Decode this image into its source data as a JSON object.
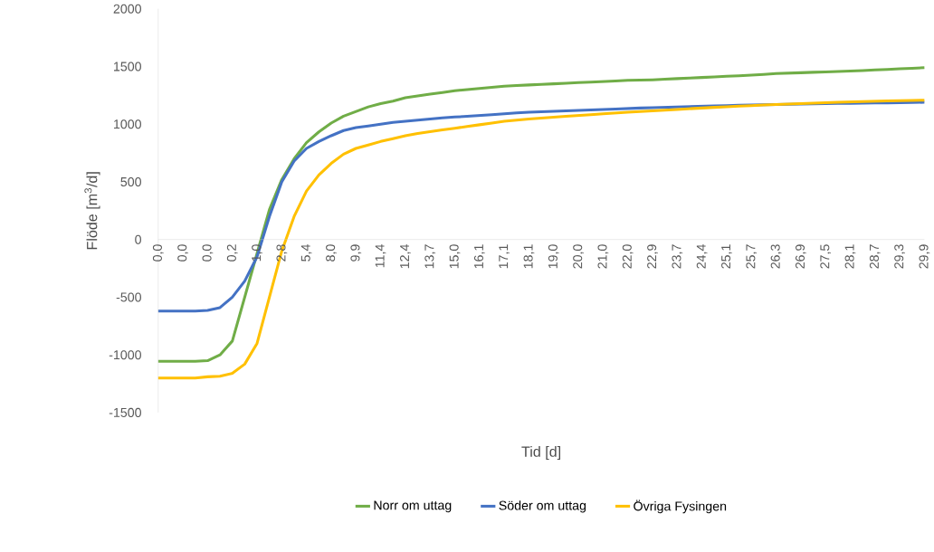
{
  "chart_data": {
    "type": "line",
    "xlabel": "Tid [d]",
    "ylabel": "Flöde [m$^{3}$/d]",
    "categories": [
      "0,0",
      null,
      "0,0",
      null,
      "0,0",
      null,
      "0,2",
      null,
      "1,0",
      null,
      "2,8",
      null,
      "5,4",
      null,
      "8,0",
      null,
      "9,9",
      null,
      "11,4",
      null,
      "12,4",
      null,
      "13,7",
      null,
      "15,0",
      null,
      "16,1",
      null,
      "17,1",
      null,
      "18,1",
      null,
      "19,0",
      null,
      "20,0",
      null,
      "21,0",
      null,
      "22,0",
      null,
      "22,9",
      null,
      "23,7",
      null,
      "24,4",
      null,
      "25,1",
      null,
      "25,7",
      null,
      "26,3",
      null,
      "26,9",
      null,
      "27,5",
      null,
      "28,1",
      null,
      "28,7",
      null,
      "29,3",
      null,
      "29,9"
    ],
    "series": [
      {
        "name": "Norr om uttag",
        "color": "#70ad47",
        "values": [
          -1055,
          -1055,
          -1055,
          -1055,
          -1050,
          -1000,
          -880,
          -500,
          -120,
          260,
          520,
          700,
          840,
          933,
          1010,
          1070,
          1110,
          1150,
          1179,
          1200,
          1230,
          1245,
          1260,
          1275,
          1290,
          1300,
          1310,
          1320,
          1330,
          1335,
          1340,
          1345,
          1350,
          1355,
          1360,
          1365,
          1370,
          1375,
          1380,
          1382,
          1385,
          1390,
          1395,
          1400,
          1405,
          1410,
          1415,
          1420,
          1425,
          1432,
          1440,
          1443,
          1446,
          1450,
          1453,
          1457,
          1460,
          1465,
          1470,
          1475,
          1480,
          1485,
          1490
        ]
      },
      {
        "name": "Söder om uttag",
        "color": "#4472c4",
        "values": [
          -620,
          -620,
          -620,
          -620,
          -615,
          -590,
          -500,
          -360,
          -150,
          200,
          500,
          680,
          790,
          850,
          900,
          945,
          970,
          985,
          1000,
          1015,
          1025,
          1035,
          1045,
          1055,
          1062,
          1068,
          1075,
          1082,
          1090,
          1098,
          1104,
          1108,
          1112,
          1116,
          1120,
          1124,
          1128,
          1132,
          1136,
          1140,
          1143,
          1146,
          1149,
          1152,
          1155,
          1158,
          1161,
          1164,
          1166,
          1168,
          1170,
          1172,
          1174,
          1176,
          1178,
          1180,
          1181,
          1182,
          1184,
          1185,
          1186,
          1188,
          1190
        ]
      },
      {
        "name": "Övriga Fysingen",
        "color": "#ffc000",
        "values": [
          -1200,
          -1200,
          -1200,
          -1200,
          -1190,
          -1185,
          -1160,
          -1080,
          -900,
          -500,
          -100,
          200,
          420,
          560,
          660,
          740,
          790,
          820,
          850,
          875,
          900,
          920,
          935,
          950,
          965,
          980,
          995,
          1010,
          1025,
          1035,
          1045,
          1052,
          1060,
          1068,
          1075,
          1082,
          1090,
          1097,
          1104,
          1110,
          1116,
          1122,
          1128,
          1134,
          1140,
          1146,
          1151,
          1156,
          1161,
          1166,
          1170,
          1174,
          1178,
          1182,
          1186,
          1190,
          1193,
          1196,
          1199,
          1202,
          1204,
          1206,
          1208
        ]
      }
    ],
    "ylim": [
      -1500,
      2000
    ],
    "yticks": [
      -1500,
      -1000,
      -500,
      0,
      500,
      1000,
      1500,
      2000
    ],
    "legend": "bottom"
  }
}
